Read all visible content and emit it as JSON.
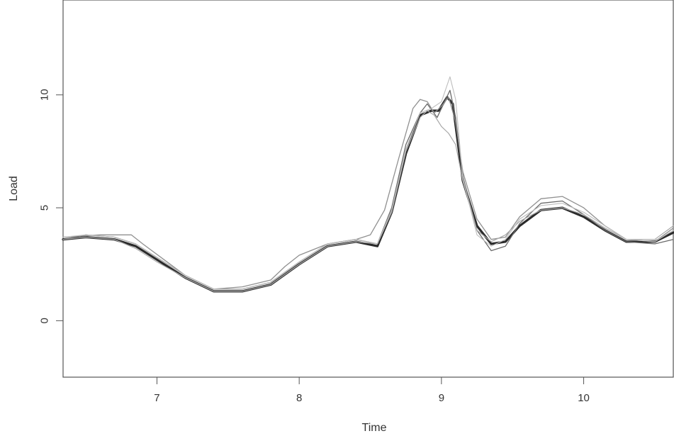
{
  "chart_data": {
    "type": "line",
    "xlabel": "Time",
    "ylabel": "Load",
    "xlim": [
      6.34,
      10.63
    ],
    "ylim": [
      -2.5,
      14.2
    ],
    "x_ticks": [
      7,
      8,
      9,
      10
    ],
    "y_ticks": [
      0,
      5,
      10
    ],
    "grid": false,
    "legend": "none",
    "series": [
      {
        "color": "#2b2b2b",
        "width": 3.2,
        "points": [
          [
            6.34,
            3.6
          ],
          [
            6.5,
            3.7
          ],
          [
            6.7,
            3.6
          ],
          [
            6.85,
            3.3
          ],
          [
            7.0,
            2.7
          ],
          [
            7.2,
            1.9
          ],
          [
            7.4,
            1.3
          ],
          [
            7.6,
            1.3
          ],
          [
            7.8,
            1.6
          ],
          [
            8.0,
            2.5
          ],
          [
            8.2,
            3.3
          ],
          [
            8.4,
            3.5
          ],
          [
            8.55,
            3.3
          ],
          [
            8.65,
            4.8
          ],
          [
            8.75,
            7.4
          ],
          [
            8.85,
            9.1
          ],
          [
            8.93,
            9.3
          ],
          [
            8.98,
            9.3
          ],
          [
            9.04,
            9.9
          ],
          [
            9.08,
            9.6
          ],
          [
            9.15,
            6.2
          ],
          [
            9.25,
            4.2
          ],
          [
            9.35,
            3.4
          ],
          [
            9.45,
            3.5
          ],
          [
            9.55,
            4.2
          ],
          [
            9.7,
            4.9
          ],
          [
            9.85,
            5.0
          ],
          [
            10.0,
            4.6
          ],
          [
            10.15,
            4.0
          ],
          [
            10.3,
            3.5
          ],
          [
            10.5,
            3.5
          ],
          [
            10.63,
            3.9
          ]
        ]
      },
      {
        "color": "#6a6a6a",
        "width": 1.3,
        "points": [
          [
            6.34,
            3.6
          ],
          [
            6.5,
            3.8
          ],
          [
            6.7,
            3.7
          ],
          [
            6.85,
            3.4
          ],
          [
            7.0,
            2.8
          ],
          [
            7.2,
            2.0
          ],
          [
            7.4,
            1.4
          ],
          [
            7.6,
            1.4
          ],
          [
            7.8,
            1.7
          ],
          [
            8.0,
            2.6
          ],
          [
            8.2,
            3.4
          ],
          [
            8.4,
            3.6
          ],
          [
            8.55,
            3.4
          ],
          [
            8.65,
            5.0
          ],
          [
            8.75,
            7.8
          ],
          [
            8.85,
            9.2
          ],
          [
            8.9,
            9.6
          ],
          [
            8.97,
            9.0
          ],
          [
            9.03,
            9.8
          ],
          [
            9.06,
            10.2
          ],
          [
            9.1,
            9.0
          ],
          [
            9.15,
            6.4
          ],
          [
            9.25,
            4.0
          ],
          [
            9.35,
            3.1
          ],
          [
            9.45,
            3.3
          ],
          [
            9.55,
            4.3
          ],
          [
            9.7,
            5.2
          ],
          [
            9.85,
            5.3
          ],
          [
            10.0,
            4.7
          ],
          [
            10.15,
            4.0
          ],
          [
            10.3,
            3.5
          ],
          [
            10.5,
            3.4
          ],
          [
            10.63,
            3.6
          ]
        ]
      },
      {
        "color": "#909090",
        "width": 1.3,
        "points": [
          [
            6.34,
            3.7
          ],
          [
            6.6,
            3.8
          ],
          [
            6.82,
            3.8
          ],
          [
            6.9,
            3.4
          ],
          [
            7.05,
            2.7
          ],
          [
            7.2,
            2.0
          ],
          [
            7.4,
            1.4
          ],
          [
            7.6,
            1.5
          ],
          [
            7.8,
            1.8
          ],
          [
            7.9,
            2.4
          ],
          [
            8.0,
            2.9
          ],
          [
            8.2,
            3.4
          ],
          [
            8.4,
            3.6
          ],
          [
            8.5,
            3.8
          ],
          [
            8.6,
            4.9
          ],
          [
            8.7,
            7.2
          ],
          [
            8.8,
            9.4
          ],
          [
            8.85,
            9.8
          ],
          [
            8.9,
            9.7
          ],
          [
            8.95,
            9.2
          ],
          [
            9.0,
            9.5
          ],
          [
            9.05,
            9.9
          ],
          [
            9.1,
            8.8
          ],
          [
            9.15,
            6.6
          ],
          [
            9.25,
            4.5
          ],
          [
            9.35,
            3.6
          ],
          [
            9.45,
            3.7
          ],
          [
            9.55,
            4.6
          ],
          [
            9.7,
            5.4
          ],
          [
            9.85,
            5.5
          ],
          [
            10.0,
            5.0
          ],
          [
            10.15,
            4.2
          ],
          [
            10.3,
            3.6
          ],
          [
            10.5,
            3.5
          ],
          [
            10.63,
            4.1
          ]
        ]
      },
      {
        "color": "#a8a8a8",
        "width": 1.2,
        "points": [
          [
            6.34,
            3.6
          ],
          [
            6.5,
            3.7
          ],
          [
            6.7,
            3.6
          ],
          [
            6.85,
            3.2
          ],
          [
            7.0,
            2.6
          ],
          [
            7.2,
            1.9
          ],
          [
            7.4,
            1.3
          ],
          [
            7.6,
            1.3
          ],
          [
            7.8,
            1.6
          ],
          [
            8.0,
            2.5
          ],
          [
            8.2,
            3.3
          ],
          [
            8.4,
            3.5
          ],
          [
            8.55,
            3.4
          ],
          [
            8.65,
            4.8
          ],
          [
            8.75,
            7.5
          ],
          [
            8.85,
            9.0
          ],
          [
            8.9,
            9.3
          ],
          [
            8.95,
            9.1
          ],
          [
            9.0,
            8.6
          ],
          [
            9.05,
            8.3
          ],
          [
            9.1,
            7.8
          ],
          [
            9.15,
            6.2
          ],
          [
            9.25,
            4.0
          ],
          [
            9.35,
            3.5
          ],
          [
            9.45,
            3.8
          ],
          [
            9.55,
            4.4
          ],
          [
            9.7,
            4.9
          ],
          [
            9.85,
            5.0
          ],
          [
            10.0,
            4.7
          ],
          [
            10.15,
            4.1
          ],
          [
            10.3,
            3.6
          ],
          [
            10.5,
            3.6
          ],
          [
            10.63,
            4.2
          ]
        ]
      },
      {
        "color": "#bdbdbd",
        "width": 1.1,
        "points": [
          [
            6.34,
            3.7
          ],
          [
            6.5,
            3.8
          ],
          [
            6.7,
            3.7
          ],
          [
            6.85,
            3.4
          ],
          [
            7.0,
            2.8
          ],
          [
            7.2,
            2.0
          ],
          [
            7.4,
            1.4
          ],
          [
            7.6,
            1.4
          ],
          [
            7.8,
            1.7
          ],
          [
            8.0,
            2.6
          ],
          [
            8.2,
            3.4
          ],
          [
            8.4,
            3.6
          ],
          [
            8.55,
            3.4
          ],
          [
            8.65,
            4.9
          ],
          [
            8.75,
            7.6
          ],
          [
            8.85,
            9.2
          ],
          [
            8.93,
            9.4
          ],
          [
            9.0,
            9.7
          ],
          [
            9.06,
            10.8
          ],
          [
            9.1,
            9.8
          ],
          [
            9.15,
            6.3
          ],
          [
            9.25,
            3.8
          ],
          [
            9.35,
            3.3
          ],
          [
            9.45,
            3.6
          ],
          [
            9.55,
            4.5
          ],
          [
            9.7,
            5.1
          ],
          [
            9.85,
            5.2
          ],
          [
            10.0,
            4.8
          ],
          [
            10.15,
            4.2
          ],
          [
            10.3,
            3.6
          ],
          [
            10.5,
            3.5
          ],
          [
            10.63,
            4.0
          ]
        ]
      }
    ]
  }
}
